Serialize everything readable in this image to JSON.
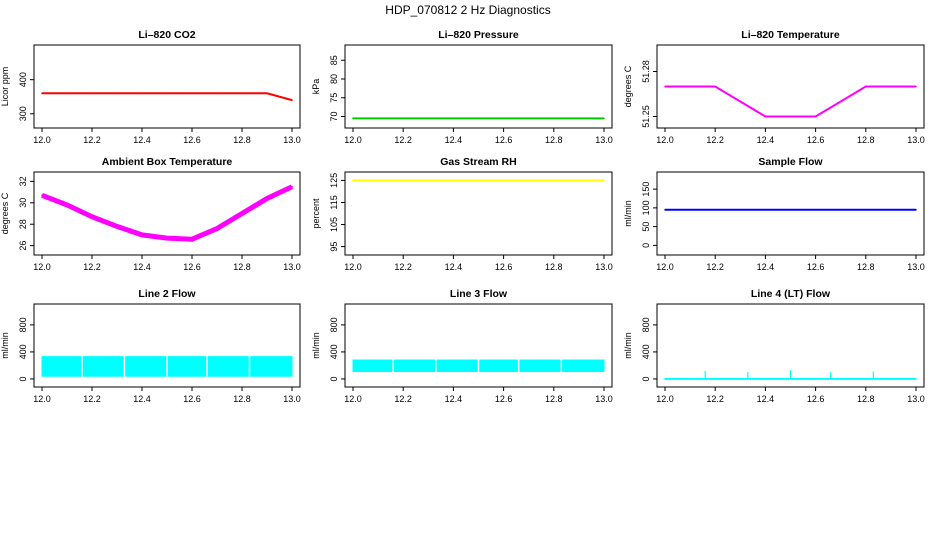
{
  "figure_title": "HDP_070812  2 Hz Diagnostics",
  "chart_data": [
    {
      "type": "line",
      "title": "Li–820 CO2",
      "ylabel": "Licor ppm",
      "color": "#ff0000",
      "x": [
        12.0,
        12.1,
        12.2,
        12.3,
        12.4,
        12.5,
        12.6,
        12.7,
        12.8,
        12.9,
        13.0
      ],
      "series": [
        {
          "values": [
            360,
            360,
            360,
            360,
            360,
            360,
            360,
            360,
            360,
            360,
            340
          ]
        }
      ],
      "xlim": [
        12.0,
        13.0
      ],
      "ylim": [
        270,
        490
      ],
      "xticks": [
        "12.0",
        "12.2",
        "12.4",
        "12.6",
        "12.8",
        "13.0"
      ],
      "yticks": [
        "300",
        "400"
      ],
      "ytick_values": [
        300,
        400
      ]
    },
    {
      "type": "line",
      "title": "Li–820 Pressure",
      "ylabel": "kPa",
      "color": "#00cc00",
      "x": [
        12.0,
        12.1,
        12.2,
        12.3,
        12.4,
        12.5,
        12.6,
        12.7,
        12.8,
        12.9,
        13.0
      ],
      "series": [
        {
          "values": [
            69.5,
            69.5,
            69.5,
            69.5,
            69.5,
            69.5,
            69.5,
            69.5,
            69.5,
            69.5,
            69.5
          ]
        }
      ],
      "xlim": [
        12.0,
        13.0
      ],
      "ylim": [
        68,
        88
      ],
      "xticks": [
        "12.0",
        "12.2",
        "12.4",
        "12.6",
        "12.8",
        "13.0"
      ],
      "yticks": [
        "70",
        "75",
        "80",
        "85"
      ],
      "ytick_values": [
        70,
        75,
        80,
        85
      ]
    },
    {
      "type": "line",
      "title": "Li–820 Temperature",
      "ylabel": "degrees C",
      "color": "#ff00ff",
      "x": [
        12.0,
        12.2,
        12.4,
        12.6,
        12.8,
        13.0
      ],
      "series": [
        {
          "values": [
            51.27,
            51.27,
            51.25,
            51.25,
            51.27,
            51.27
          ]
        }
      ],
      "xlim": [
        12.0,
        13.0
      ],
      "ylim": [
        51.245,
        51.295
      ],
      "xticks": [
        "12.0",
        "12.2",
        "12.4",
        "12.6",
        "12.8",
        "13.0"
      ],
      "yticks": [
        "51.25",
        "51.28"
      ],
      "ytick_values": [
        51.25,
        51.28
      ]
    },
    {
      "type": "line",
      "title": "Ambient Box Temperature",
      "ylabel": "degrees C",
      "color": "#ff00ff",
      "x": [
        12.0,
        12.1,
        12.2,
        12.3,
        12.4,
        12.5,
        12.6,
        12.7,
        12.8,
        12.9,
        13.0
      ],
      "series": [
        {
          "values": [
            30.7,
            29.8,
            28.7,
            27.8,
            27.0,
            26.7,
            26.6,
            27.6,
            29.0,
            30.4,
            31.5
          ]
        }
      ],
      "xlim": [
        12.0,
        13.0
      ],
      "ylim": [
        25.5,
        32.5
      ],
      "xticks": [
        "12.0",
        "12.2",
        "12.4",
        "12.6",
        "12.8",
        "13.0"
      ],
      "yticks": [
        "26",
        "28",
        "30",
        "32"
      ],
      "ytick_values": [
        26,
        28,
        30,
        32
      ]
    },
    {
      "type": "line",
      "title": "Gas Stream RH",
      "ylabel": "percent",
      "color": "#ffff00",
      "x": [
        12.0,
        12.1,
        12.2,
        12.3,
        12.4,
        12.5,
        12.6,
        12.7,
        12.8,
        12.9,
        13.0
      ],
      "series": [
        {
          "values": [
            125,
            125,
            125,
            125,
            125,
            125,
            125,
            125,
            125,
            125,
            125
          ]
        }
      ],
      "xlim": [
        12.0,
        13.0
      ],
      "ylim": [
        93,
        127
      ],
      "xticks": [
        "12.0",
        "12.2",
        "12.4",
        "12.6",
        "12.8",
        "13.0"
      ],
      "yticks": [
        "95",
        "105",
        "115",
        "125"
      ],
      "ytick_values": [
        95,
        105,
        115,
        125
      ]
    },
    {
      "type": "line",
      "title": "Sample Flow",
      "ylabel": "ml/min",
      "color": "#0000ff",
      "x": [
        12.0,
        12.1,
        12.2,
        12.3,
        12.4,
        12.5,
        12.6,
        12.7,
        12.8,
        12.9,
        13.0
      ],
      "series": [
        {
          "values": [
            95,
            95,
            95,
            95,
            95,
            95,
            95,
            95,
            95,
            95,
            95
          ]
        }
      ],
      "xlim": [
        12.0,
        13.0
      ],
      "ylim": [
        -15,
        185
      ],
      "xticks": [
        "12.0",
        "12.2",
        "12.4",
        "12.6",
        "12.8",
        "13.0"
      ],
      "yticks": [
        "0",
        "50",
        "100",
        "150"
      ],
      "ytick_values": [
        0,
        50,
        100,
        150
      ]
    },
    {
      "type": "area",
      "title": "Line 2 Flow",
      "ylabel": "ml/min",
      "color": "#00ffff",
      "x": [
        12.0,
        12.16,
        12.33,
        12.5,
        12.66,
        12.83,
        13.0
      ],
      "series": [
        {
          "values": [
            330,
            330,
            330,
            330,
            330,
            330,
            330
          ]
        }
      ],
      "low": [
        40,
        40,
        40,
        40,
        40,
        40,
        40
      ],
      "xlim": [
        12.0,
        13.0
      ],
      "ylim": [
        -60,
        1050
      ],
      "xticks": [
        "12.0",
        "12.2",
        "12.4",
        "12.6",
        "12.8",
        "13.0"
      ],
      "yticks": [
        "0",
        "400",
        "800"
      ],
      "ytick_values": [
        0,
        400,
        800
      ]
    },
    {
      "type": "area",
      "title": "Line 3 Flow",
      "ylabel": "ml/min",
      "color": "#00ffff",
      "x": [
        12.0,
        12.16,
        12.33,
        12.5,
        12.66,
        12.83,
        13.0
      ],
      "series": [
        {
          "values": [
            280,
            280,
            280,
            280,
            280,
            280,
            280
          ]
        }
      ],
      "low": [
        110,
        110,
        110,
        110,
        110,
        110,
        110
      ],
      "xlim": [
        12.0,
        13.0
      ],
      "ylim": [
        -60,
        1050
      ],
      "xticks": [
        "12.0",
        "12.2",
        "12.4",
        "12.6",
        "12.8",
        "13.0"
      ],
      "yticks": [
        "0",
        "400",
        "800"
      ],
      "ytick_values": [
        0,
        400,
        800
      ]
    },
    {
      "type": "line",
      "title": "Line 4 (LT) Flow",
      "ylabel": "ml/min",
      "color": "#00ffff",
      "x": [
        12.0,
        12.1,
        12.2,
        12.3,
        12.4,
        12.5,
        12.6,
        12.7,
        12.8,
        12.9,
        13.0
      ],
      "series": [
        {
          "values": [
            0,
            0,
            0,
            0,
            0,
            0,
            0,
            0,
            0,
            0,
            0
          ]
        }
      ],
      "spikes_x": [
        12.16,
        12.33,
        12.5,
        12.66,
        12.83
      ],
      "spikes_y": [
        120,
        100,
        130,
        100,
        110
      ],
      "xlim": [
        12.0,
        13.0
      ],
      "ylim": [
        -60,
        1050
      ],
      "xticks": [
        "12.0",
        "12.2",
        "12.4",
        "12.6",
        "12.8",
        "13.0"
      ],
      "yticks": [
        "0",
        "400",
        "800"
      ],
      "ytick_values": [
        0,
        400,
        800
      ]
    }
  ]
}
